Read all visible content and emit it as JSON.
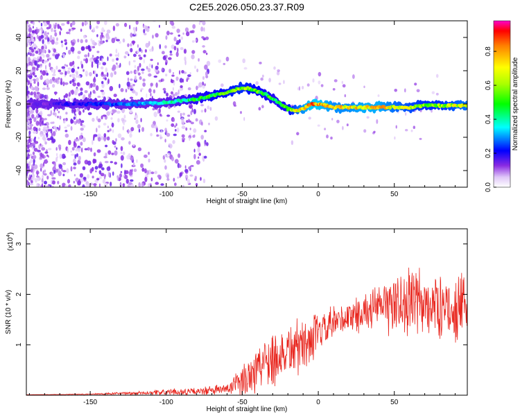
{
  "title": "C2E5.2026.050.23.37.R09",
  "colors": {
    "snr_line": "#e8241c",
    "axes": "#000000",
    "scatter": "#8a2be2"
  },
  "colorbar": {
    "label": "Normalized spectral amplitude",
    "range": [
      0.0,
      0.98
    ],
    "ticks": [
      "0.0",
      "0.2",
      "0.4",
      "0.6",
      "0.8"
    ],
    "tick_values": [
      0.0,
      0.2,
      0.4,
      0.6,
      0.8
    ]
  },
  "chart_data": [
    {
      "type": "heatmap",
      "xlabel": "Height of straight line (km)",
      "ylabel": "Frequency (Hz)",
      "xlim": [
        -192,
        98
      ],
      "ylim": [
        -50,
        50
      ],
      "xticks": [
        -150,
        -100,
        -50,
        0,
        50
      ],
      "xtick_labels": [
        "-150",
        "-100",
        "-50",
        "0",
        "50"
      ],
      "yticks": [
        -40,
        -20,
        0,
        20,
        40
      ],
      "ytick_labels": [
        "-40",
        "-20",
        "0",
        "20",
        "40"
      ],
      "ridge": {
        "x": [
          -190,
          -150,
          -120,
          -100,
          -80,
          -60,
          -50,
          -45,
          -35,
          -28,
          -20,
          -15,
          -10,
          -5,
          0,
          10,
          20,
          30,
          40,
          50,
          60,
          70,
          80,
          95
        ],
        "y": [
          0,
          0,
          0,
          1,
          3,
          7,
          10,
          9,
          6,
          2,
          -3,
          -4,
          -3,
          0,
          0,
          -2,
          -2,
          -2,
          -2,
          -2,
          -2,
          -1,
          -1,
          -1
        ],
        "amplitude": [
          0.15,
          0.25,
          0.35,
          0.45,
          0.55,
          0.65,
          0.7,
          0.65,
          0.6,
          0.55,
          0.6,
          0.75,
          0.85,
          0.95,
          0.95,
          0.85,
          0.85,
          0.9,
          0.9,
          0.8,
          0.75,
          0.7,
          0.7,
          0.8
        ]
      }
    },
    {
      "type": "line",
      "xlabel": "Height of straight line (km)",
      "ylabel": "SNR (10 * v/v)",
      "multiplier_label": "(x10",
      "multiplier_exp": "4",
      "multiplier_close": ")",
      "xlim": [
        -192,
        98
      ],
      "ylim": [
        0,
        3.3
      ],
      "xticks": [
        -150,
        -100,
        -50,
        0,
        50
      ],
      "xtick_labels": [
        "-150",
        "-100",
        "-50",
        "0",
        "50"
      ],
      "yticks": [
        1,
        2,
        3
      ],
      "ytick_labels": [
        "1",
        "2",
        "3"
      ],
      "series": [
        {
          "name": "SNR",
          "x": [
            -190,
            -150,
            -120,
            -100,
            -80,
            -60,
            -50,
            -45,
            -40,
            -35,
            -30,
            -25,
            -20,
            -15,
            -10,
            -5,
            0,
            10,
            20,
            30,
            40,
            50,
            60,
            70,
            80,
            90,
            97
          ],
          "mean": [
            0.01,
            0.02,
            0.04,
            0.06,
            0.07,
            0.12,
            0.25,
            0.45,
            0.55,
            0.7,
            0.8,
            0.75,
            0.9,
            0.95,
            1.0,
            1.1,
            1.2,
            1.4,
            1.55,
            1.65,
            1.75,
            1.8,
            1.85,
            1.8,
            1.75,
            1.7,
            1.7
          ],
          "amplitude": [
            0.0,
            0.01,
            0.03,
            0.05,
            0.06,
            0.1,
            0.25,
            0.45,
            0.45,
            0.4,
            0.55,
            0.5,
            0.45,
            0.5,
            0.45,
            0.4,
            0.35,
            0.3,
            0.3,
            0.3,
            0.35,
            0.55,
            0.6,
            0.6,
            0.5,
            0.5,
            0.6
          ]
        }
      ]
    }
  ]
}
